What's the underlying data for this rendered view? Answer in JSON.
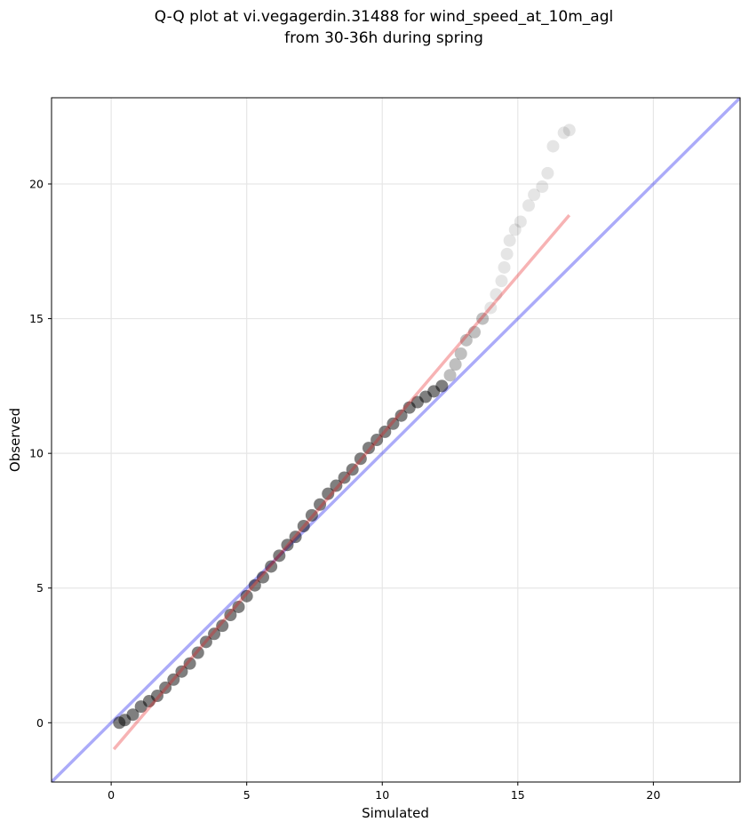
{
  "chart_data": {
    "type": "scatter",
    "title_lines": [
      "Q-Q plot at vi.vegagerdin.31488 for wind_speed_at_10m_agl",
      "from 30-36h during spring"
    ],
    "xlabel": "Simulated",
    "ylabel": "Observed",
    "xlim": [
      -2.2,
      23.2
    ],
    "ylim": [
      -2.2,
      23.2
    ],
    "xticks": [
      0,
      5,
      10,
      15,
      20
    ],
    "yticks": [
      0,
      5,
      10,
      15,
      20
    ],
    "grid": true,
    "legend": "none",
    "reference_line": {
      "kind": "identity",
      "color": "#0000ee"
    },
    "fit_line": {
      "kind": "linear-fit",
      "color": "#e8171b",
      "x_range": [
        0.1,
        16.9
      ],
      "slope": 1.18,
      "intercept": -1.1
    },
    "series": [
      {
        "marker_color": "#000000",
        "points": [
          [
            0.3,
            0.0
          ],
          [
            0.5,
            0.1
          ],
          [
            0.8,
            0.3
          ],
          [
            1.1,
            0.6
          ],
          [
            1.4,
            0.8
          ],
          [
            1.7,
            1.0
          ],
          [
            2.0,
            1.3
          ],
          [
            2.3,
            1.6
          ],
          [
            2.6,
            1.9
          ],
          [
            2.9,
            2.2
          ],
          [
            3.2,
            2.6
          ],
          [
            3.5,
            3.0
          ],
          [
            3.8,
            3.3
          ],
          [
            4.1,
            3.6
          ],
          [
            4.4,
            4.0
          ],
          [
            4.7,
            4.3
          ],
          [
            5.0,
            4.7
          ],
          [
            5.3,
            5.1
          ],
          [
            5.6,
            5.4
          ],
          [
            5.9,
            5.8
          ],
          [
            6.2,
            6.2
          ],
          [
            6.5,
            6.6
          ],
          [
            6.8,
            6.9
          ],
          [
            7.1,
            7.3
          ],
          [
            7.4,
            7.7
          ],
          [
            7.7,
            8.1
          ],
          [
            8.0,
            8.5
          ],
          [
            8.3,
            8.8
          ],
          [
            8.6,
            9.1
          ],
          [
            8.9,
            9.4
          ],
          [
            9.2,
            9.8
          ],
          [
            9.5,
            10.2
          ],
          [
            9.8,
            10.5
          ],
          [
            10.1,
            10.8
          ],
          [
            10.4,
            11.1
          ],
          [
            10.7,
            11.4
          ],
          [
            11.0,
            11.7
          ],
          [
            11.3,
            11.9
          ],
          [
            11.6,
            12.1
          ],
          [
            11.9,
            12.3
          ],
          [
            12.2,
            12.5
          ],
          [
            12.5,
            12.9
          ],
          [
            12.7,
            13.3
          ],
          [
            12.9,
            13.7
          ],
          [
            13.1,
            14.2
          ],
          [
            13.4,
            14.5
          ],
          [
            13.7,
            15.0
          ],
          [
            14.0,
            15.4
          ],
          [
            14.2,
            15.9
          ],
          [
            14.4,
            16.4
          ],
          [
            14.5,
            16.9
          ],
          [
            14.6,
            17.4
          ],
          [
            14.7,
            17.9
          ],
          [
            14.9,
            18.3
          ],
          [
            15.1,
            18.6
          ],
          [
            15.4,
            19.2
          ],
          [
            15.6,
            19.6
          ],
          [
            15.9,
            19.9
          ],
          [
            16.1,
            20.4
          ],
          [
            16.3,
            21.4
          ],
          [
            16.7,
            21.9
          ],
          [
            16.9,
            22.0
          ]
        ]
      }
    ]
  }
}
